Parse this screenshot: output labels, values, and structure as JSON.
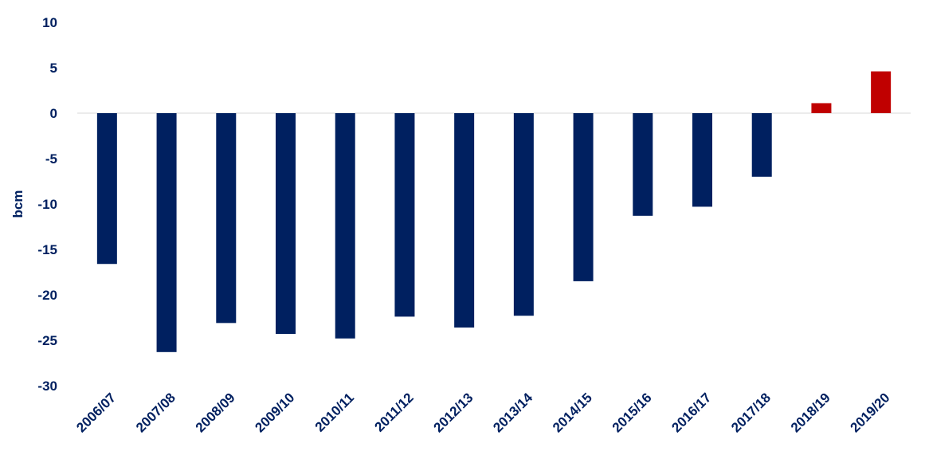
{
  "chart_data": {
    "type": "bar",
    "title": "",
    "xlabel": "",
    "ylabel": "bcm",
    "ylim": [
      -30,
      10
    ],
    "yticks": [
      10,
      5,
      0,
      -5,
      -10,
      -15,
      -20,
      -25,
      -30
    ],
    "grid": false,
    "legend": "none",
    "categories": [
      "2006/07",
      "2007/08",
      "2008/09",
      "2009/10",
      "2010/11",
      "2011/12",
      "2012/13",
      "2013/14",
      "2014/15",
      "2015/16",
      "2016/17",
      "2017/18",
      "2018/19",
      "2019/20"
    ],
    "values": [
      -16.6,
      -26.3,
      -23.1,
      -24.3,
      -24.8,
      -22.4,
      -23.6,
      -22.3,
      -18.5,
      -11.3,
      -10.3,
      -7.0,
      1.1,
      4.6
    ],
    "colors": {
      "negative": "#002060",
      "positive": "#C00000",
      "text": "#002060",
      "axis": "#D9D9D9"
    }
  }
}
